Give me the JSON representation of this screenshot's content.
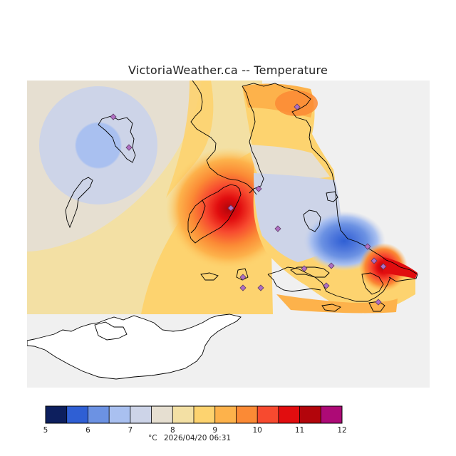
{
  "title": "VictoriaWeather.ca -- Temperature",
  "legend": {
    "unit": "°C",
    "timestamp": "2026/04/20 06:31",
    "min": 5,
    "max": 12,
    "step": 0.5,
    "tick_labels": [
      "5",
      "6",
      "7",
      "8",
      "9",
      "10",
      "11",
      "12"
    ],
    "colors": [
      "#0d1f5e",
      "#2f5fd4",
      "#6c92e3",
      "#a9c0f0",
      "#cdd4e8",
      "#e6dfd1",
      "#f3e0a4",
      "#fdd36f",
      "#fdb24b",
      "#fb8a35",
      "#f74a2f",
      "#e10d0f",
      "#b2050b",
      "#ad0a76"
    ]
  },
  "map": {
    "background_color": "#f0f0f0",
    "land_color": "#ffffff",
    "coast_color": "#000000",
    "station_marker": "diamond",
    "station_color": "#b06fc3",
    "station_count": 15
  }
}
